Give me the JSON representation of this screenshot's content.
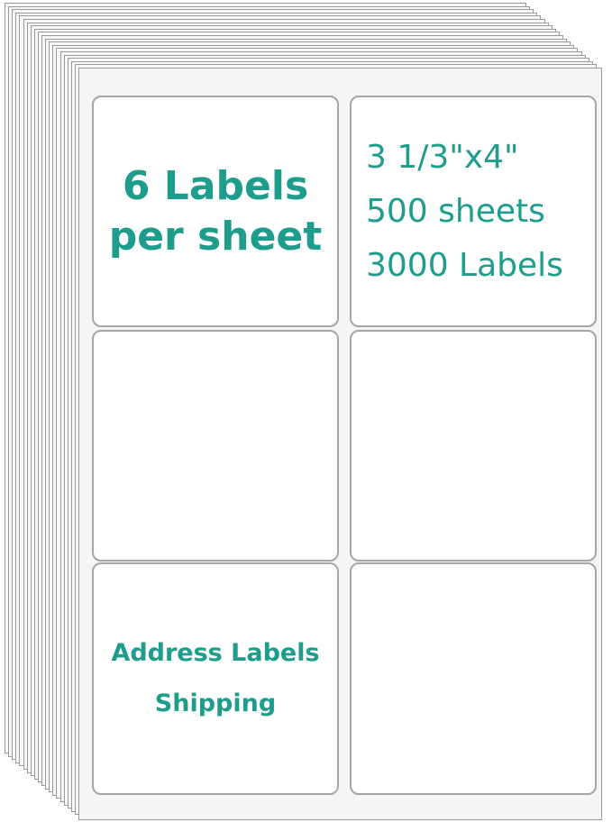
{
  "accent_color": "#1e9c8c",
  "labels": {
    "top_left": {
      "line1": "6 Labels",
      "line2": "per sheet"
    },
    "top_right": {
      "size": "3 1/3\"x4\"",
      "sheets": "500 sheets",
      "count": "3000 Labels"
    },
    "bottom_left": {
      "line1": "Address Labels",
      "line2": "Shipping"
    }
  }
}
